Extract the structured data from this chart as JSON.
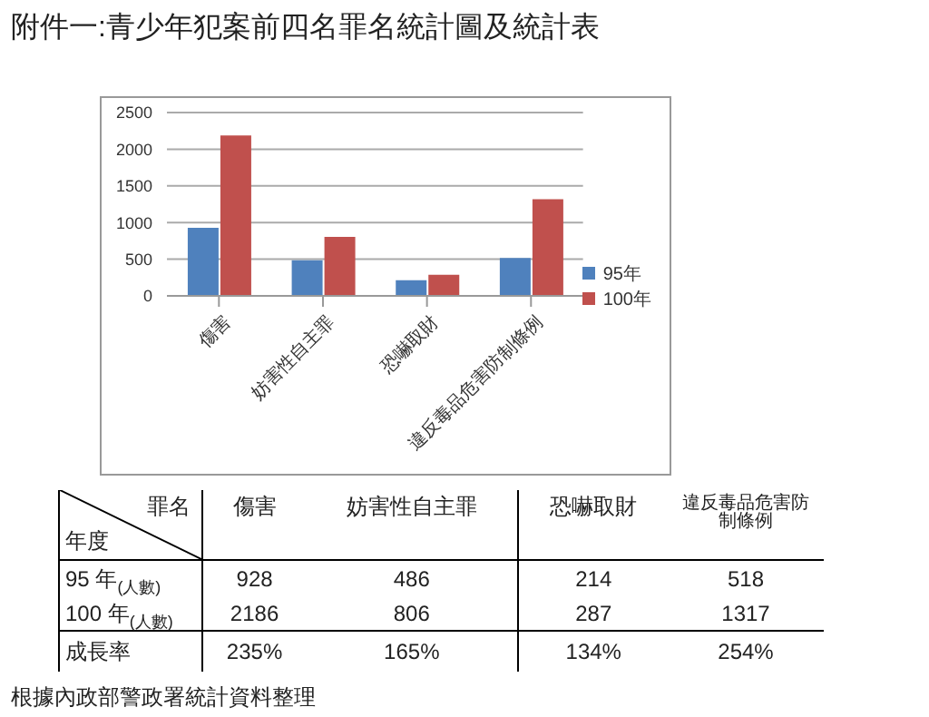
{
  "chart_data": [
    {
      "type": "bar",
      "title": "附件一:青少年犯案前四名罪名統計圖及統計表",
      "categories": [
        "傷害",
        "妨害性自主罪",
        "恐嚇取財",
        "違反毒品危害防制條例"
      ],
      "series": [
        {
          "name": "95年",
          "color": "#4f81bd",
          "values": [
            928,
            486,
            214,
            518
          ]
        },
        {
          "name": "100年",
          "color": "#c0504d",
          "values": [
            2186,
            806,
            287,
            1317
          ]
        }
      ],
      "ylim": [
        0,
        2500
      ],
      "yticks": [
        0,
        500,
        1000,
        1500,
        2000,
        2500
      ],
      "grid": "y",
      "legend": "right"
    },
    {
      "type": "other",
      "annotations": [
        "罪名",
        "年度",
        "傷害",
        "妨害性自主罪",
        "恐嚇取財",
        "違反毒品危害防制條例",
        "95 年$_{(人數)}$",
        "928",
        "486",
        "214",
        "518",
        "100 年$_{(人數)}$",
        "2186",
        "806",
        "287",
        "1317",
        "成長率",
        "235%",
        "165%",
        "134%",
        "254%",
        "根據內政部警政署統計資料整理"
      ]
    }
  ]
}
